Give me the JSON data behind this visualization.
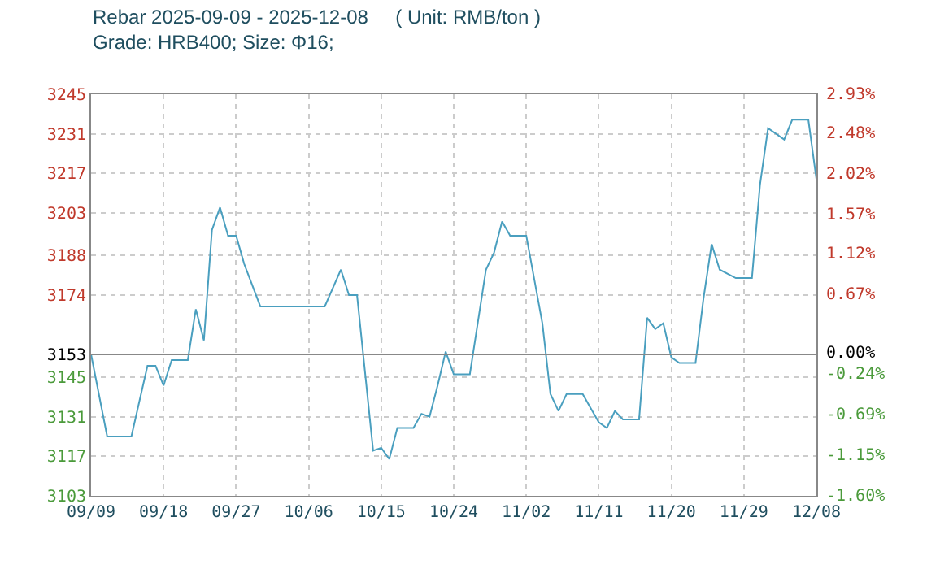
{
  "chart_data": {
    "type": "line",
    "title": "Rebar 2025-09-09 - 2025-12-08     ( Unit: RMB/ton )",
    "subtitle": "Grade: HRB400; Size: Φ16;",
    "x": [
      "2025-09-09",
      "2025-09-11",
      "2025-09-14",
      "2025-09-16",
      "2025-09-17",
      "2025-09-18",
      "2025-09-19",
      "2025-09-21",
      "2025-09-22",
      "2025-09-23",
      "2025-09-24",
      "2025-09-25",
      "2025-09-26",
      "2025-09-27",
      "2025-09-28",
      "2025-09-30",
      "2025-10-08",
      "2025-10-10",
      "2025-10-11",
      "2025-10-12",
      "2025-10-14",
      "2025-10-15",
      "2025-10-16",
      "2025-10-17",
      "2025-10-19",
      "2025-10-20",
      "2025-10-21",
      "2025-10-22",
      "2025-10-23",
      "2025-10-24",
      "2025-10-26",
      "2025-10-28",
      "2025-10-29",
      "2025-10-30",
      "2025-10-31",
      "2025-11-02",
      "2025-11-04",
      "2025-11-05",
      "2025-11-06",
      "2025-11-07",
      "2025-11-09",
      "2025-11-10",
      "2025-11-11",
      "2025-11-12",
      "2025-11-13",
      "2025-11-14",
      "2025-11-16",
      "2025-11-17",
      "2025-11-18",
      "2025-11-19",
      "2025-11-20",
      "2025-11-21",
      "2025-11-23",
      "2025-11-24",
      "2025-11-25",
      "2025-11-26",
      "2025-11-28",
      "2025-11-30",
      "2025-12-01",
      "2025-12-02",
      "2025-12-04",
      "2025-12-05",
      "2025-12-07",
      "2025-12-08"
    ],
    "series": [
      {
        "color": "#4a9fbf",
        "values": [
          3153,
          3124,
          3124,
          3149,
          3149,
          3142,
          3151,
          3151,
          3169,
          3158,
          3197,
          3205,
          3195,
          3195,
          3185,
          3170,
          3170,
          3183,
          3174,
          3174,
          3119,
          3120,
          3116,
          3127,
          3127,
          3132,
          3131,
          3142,
          3154,
          3146,
          3146,
          3183,
          3189,
          3200,
          3195,
          3195,
          3164,
          3139,
          3133,
          3139,
          3139,
          3134,
          3129,
          3127,
          3133,
          3130,
          3130,
          3166,
          3162,
          3164,
          3152,
          3150,
          3150,
          3173,
          3192,
          3183,
          3180,
          3180,
          3213,
          3233,
          3229,
          3236,
          3236,
          3215
        ]
      }
    ],
    "xlim": [
      "2025-09-09",
      "2025-12-08"
    ],
    "xticks": [
      {
        "value": "2025-09-09",
        "label": "09/09"
      },
      {
        "value": "2025-09-18",
        "label": "09/18"
      },
      {
        "value": "2025-09-27",
        "label": "09/27"
      },
      {
        "value": "2025-10-06",
        "label": "10/06"
      },
      {
        "value": "2025-10-15",
        "label": "10/15"
      },
      {
        "value": "2025-10-24",
        "label": "10/24"
      },
      {
        "value": "2025-11-02",
        "label": "11/02"
      },
      {
        "value": "2025-11-11",
        "label": "11/11"
      },
      {
        "value": "2025-11-20",
        "label": "11/20"
      },
      {
        "value": "2025-11-29",
        "label": "11/29"
      },
      {
        "value": "2025-12-08",
        "label": "12/08"
      }
    ],
    "ylim": [
      3103,
      3245
    ],
    "yticks": [
      3103,
      3117,
      3131,
      3145,
      3153,
      3174,
      3188,
      3203,
      3217,
      3231,
      3245
    ],
    "y2lim": [
      -1.6,
      2.93
    ],
    "y2ticks": [
      {
        "value": -1.6,
        "label": "-1.60%"
      },
      {
        "value": -1.15,
        "label": "-1.15%"
      },
      {
        "value": -0.69,
        "label": "-0.69%"
      },
      {
        "value": -0.24,
        "label": "-0.24%"
      },
      {
        "value": 0,
        "label": "0.00%"
      },
      {
        "value": 0.67,
        "label": "0.67%"
      },
      {
        "value": 1.12,
        "label": "1.12%"
      },
      {
        "value": 1.57,
        "label": "1.57%"
      },
      {
        "value": 2.02,
        "label": "2.02%"
      },
      {
        "value": 2.48,
        "label": "2.48%"
      },
      {
        "value": 2.93,
        "label": "2.93%"
      }
    ],
    "ref_lines": [
      {
        "axis": "y",
        "value": 3153,
        "color": "#888888",
        "line_style": "solid"
      }
    ],
    "grid": true,
    "marker": "none",
    "line_style": "solid"
  }
}
